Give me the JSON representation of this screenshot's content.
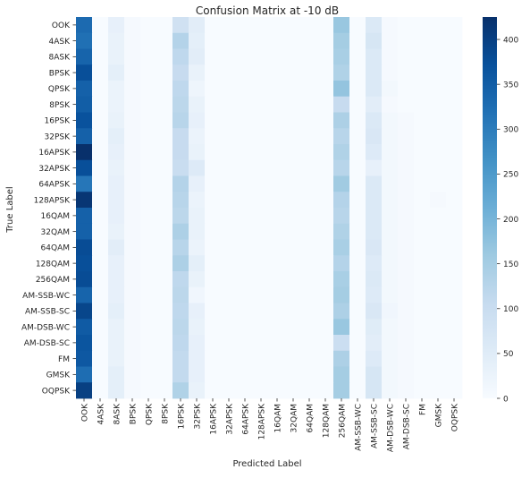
{
  "chart_data": {
    "type": "heatmap",
    "title": "Confusion Matrix at -10 dB",
    "xlabel": "Predicted Label",
    "ylabel": "True Label",
    "labels": [
      "OOK",
      "4ASK",
      "8ASK",
      "BPSK",
      "QPSK",
      "8PSK",
      "16PSK",
      "32PSK",
      "16APSK",
      "32APSK",
      "64APSK",
      "128APSK",
      "16QAM",
      "32QAM",
      "64QAM",
      "128QAM",
      "256QAM",
      "AM-SSB-WC",
      "AM-SSB-SC",
      "AM-DSB-WC",
      "AM-DSB-SC",
      "FM",
      "GMSK",
      "OQPSK"
    ],
    "colormap": "Blues",
    "color_range": [
      0,
      425
    ],
    "colorbar_ticks": [
      0,
      50,
      100,
      150,
      200,
      250,
      300,
      350,
      400
    ],
    "grid": false,
    "matrix": [
      [
        330,
        0,
        35,
        5,
        0,
        0,
        85,
        45,
        0,
        0,
        0,
        0,
        0,
        0,
        0,
        0,
        165,
        0,
        60,
        5,
        0,
        0,
        0,
        0
      ],
      [
        320,
        0,
        30,
        5,
        0,
        0,
        130,
        40,
        0,
        0,
        0,
        0,
        0,
        0,
        0,
        0,
        150,
        0,
        70,
        5,
        0,
        0,
        0,
        0
      ],
      [
        340,
        0,
        30,
        5,
        0,
        0,
        115,
        45,
        0,
        0,
        0,
        0,
        0,
        0,
        0,
        0,
        145,
        0,
        60,
        5,
        0,
        0,
        0,
        0
      ],
      [
        375,
        0,
        40,
        5,
        0,
        0,
        105,
        30,
        0,
        0,
        0,
        0,
        0,
        0,
        0,
        0,
        135,
        0,
        60,
        5,
        0,
        0,
        0,
        0
      ],
      [
        345,
        0,
        25,
        5,
        0,
        0,
        115,
        20,
        0,
        0,
        0,
        0,
        0,
        0,
        0,
        0,
        170,
        0,
        60,
        10,
        0,
        0,
        0,
        0
      ],
      [
        350,
        0,
        25,
        5,
        0,
        0,
        120,
        30,
        0,
        0,
        0,
        0,
        0,
        0,
        0,
        0,
        105,
        0,
        45,
        5,
        0,
        0,
        0,
        0
      ],
      [
        370,
        0,
        30,
        5,
        0,
        0,
        125,
        35,
        0,
        0,
        0,
        0,
        0,
        0,
        0,
        0,
        140,
        0,
        60,
        10,
        5,
        0,
        0,
        0
      ],
      [
        345,
        0,
        40,
        5,
        0,
        0,
        105,
        25,
        0,
        0,
        0,
        0,
        0,
        0,
        0,
        0,
        125,
        0,
        65,
        10,
        5,
        0,
        0,
        0
      ],
      [
        425,
        0,
        35,
        5,
        0,
        0,
        105,
        30,
        0,
        0,
        0,
        0,
        0,
        0,
        0,
        0,
        135,
        0,
        55,
        10,
        5,
        0,
        0,
        0
      ],
      [
        375,
        0,
        30,
        5,
        0,
        0,
        100,
        55,
        0,
        0,
        0,
        0,
        0,
        0,
        0,
        0,
        125,
        0,
        35,
        10,
        5,
        0,
        0,
        0
      ],
      [
        310,
        0,
        35,
        5,
        0,
        0,
        130,
        35,
        0,
        0,
        0,
        0,
        0,
        0,
        0,
        0,
        155,
        0,
        60,
        10,
        5,
        0,
        0,
        0
      ],
      [
        415,
        0,
        35,
        5,
        0,
        0,
        125,
        25,
        0,
        0,
        0,
        0,
        0,
        0,
        0,
        0,
        130,
        0,
        60,
        10,
        5,
        0,
        5,
        0
      ],
      [
        345,
        0,
        35,
        5,
        0,
        0,
        120,
        30,
        0,
        0,
        0,
        0,
        0,
        0,
        0,
        0,
        125,
        0,
        60,
        10,
        5,
        0,
        0,
        0
      ],
      [
        345,
        0,
        30,
        5,
        0,
        0,
        140,
        30,
        0,
        0,
        0,
        0,
        0,
        0,
        0,
        0,
        135,
        0,
        60,
        10,
        5,
        0,
        0,
        0
      ],
      [
        380,
        0,
        45,
        5,
        0,
        0,
        125,
        25,
        0,
        0,
        0,
        0,
        0,
        0,
        0,
        0,
        145,
        0,
        65,
        10,
        5,
        0,
        0,
        0
      ],
      [
        375,
        0,
        35,
        5,
        0,
        0,
        140,
        40,
        0,
        0,
        0,
        0,
        0,
        0,
        0,
        0,
        130,
        0,
        55,
        10,
        5,
        0,
        0,
        0
      ],
      [
        380,
        0,
        35,
        5,
        0,
        0,
        115,
        30,
        0,
        0,
        0,
        0,
        0,
        0,
        0,
        0,
        145,
        0,
        60,
        10,
        5,
        0,
        0,
        0
      ],
      [
        340,
        0,
        35,
        5,
        0,
        0,
        120,
        15,
        0,
        0,
        0,
        0,
        0,
        0,
        0,
        0,
        150,
        0,
        55,
        10,
        5,
        0,
        0,
        0
      ],
      [
        390,
        0,
        40,
        5,
        0,
        0,
        115,
        35,
        0,
        0,
        0,
        0,
        0,
        0,
        0,
        0,
        140,
        0,
        65,
        15,
        5,
        0,
        0,
        0
      ],
      [
        355,
        0,
        30,
        5,
        0,
        0,
        120,
        30,
        0,
        0,
        0,
        0,
        0,
        0,
        0,
        0,
        165,
        0,
        50,
        10,
        5,
        0,
        0,
        0
      ],
      [
        365,
        0,
        30,
        5,
        0,
        0,
        115,
        35,
        0,
        0,
        0,
        0,
        0,
        0,
        0,
        0,
        95,
        0,
        45,
        10,
        5,
        0,
        0,
        0
      ],
      [
        360,
        0,
        30,
        5,
        0,
        0,
        110,
        35,
        0,
        0,
        0,
        0,
        0,
        0,
        0,
        0,
        140,
        0,
        55,
        10,
        5,
        0,
        0,
        0
      ],
      [
        325,
        0,
        40,
        5,
        0,
        0,
        110,
        35,
        0,
        0,
        0,
        0,
        0,
        0,
        0,
        0,
        150,
        0,
        70,
        10,
        5,
        0,
        0,
        0
      ],
      [
        400,
        0,
        40,
        5,
        0,
        0,
        135,
        30,
        0,
        0,
        0,
        0,
        0,
        0,
        0,
        0,
        150,
        0,
        70,
        10,
        5,
        0,
        0,
        0
      ]
    ]
  }
}
